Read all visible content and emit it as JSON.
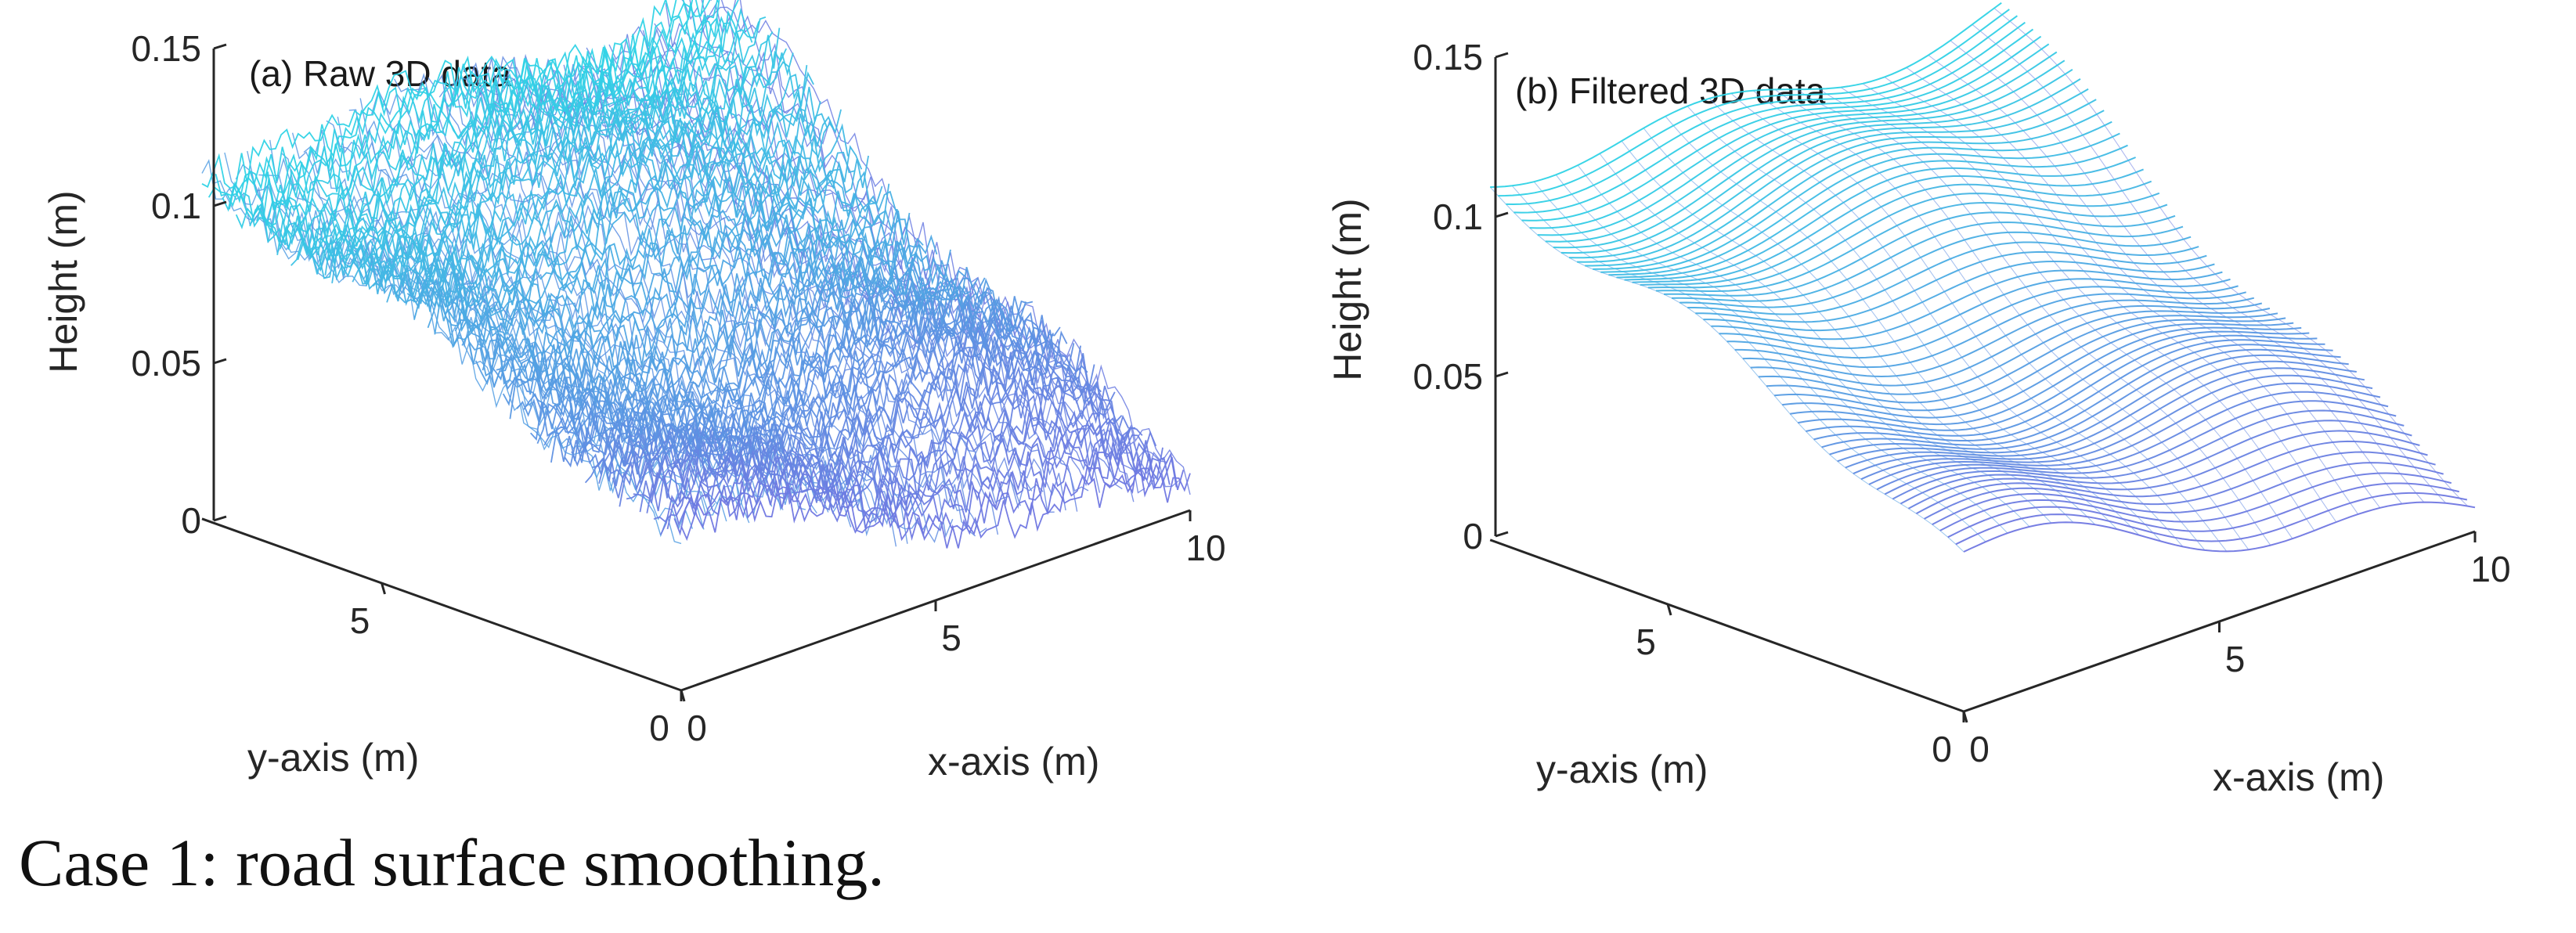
{
  "caption": "Case 1: road surface smoothing.",
  "colors": {
    "high": "#2fd3e6",
    "low": "#8060e0",
    "axis": "#262626"
  },
  "chart_data": [
    {
      "type": "surface",
      "title": "(a) Raw 3D data",
      "xlabel": "x-axis (m)",
      "ylabel": "y-axis (m)",
      "zlabel": "Height (m)",
      "xlim": [
        0,
        10
      ],
      "ylim": [
        0,
        8
      ],
      "zlim": [
        0,
        0.15
      ],
      "xticks": [
        {
          "value": 0,
          "label": "0"
        },
        {
          "value": 5,
          "label": "5"
        },
        {
          "value": 10,
          "label": "10"
        }
      ],
      "yticks": [
        {
          "value": 0,
          "label": "0"
        },
        {
          "value": 5,
          "label": "5"
        }
      ],
      "zticks": [
        {
          "value": 0,
          "label": "0"
        },
        {
          "value": 0.05,
          "label": "0.05"
        },
        {
          "value": 0.1,
          "label": "0.1"
        },
        {
          "value": 0.15,
          "label": "0.15"
        }
      ],
      "surface": {
        "min_height": 0.0,
        "max_height": 0.14,
        "noise": "high"
      }
    },
    {
      "type": "surface",
      "title": "(b) Filtered 3D data",
      "xlabel": "x-axis (m)",
      "ylabel": "y-axis (m)",
      "zlabel": "Height (m)",
      "xlim": [
        0,
        10
      ],
      "ylim": [
        0,
        8
      ],
      "zlim": [
        0,
        0.15
      ],
      "xticks": [
        {
          "value": 0,
          "label": "0"
        },
        {
          "value": 5,
          "label": "5"
        },
        {
          "value": 10,
          "label": "10"
        }
      ],
      "yticks": [
        {
          "value": 0,
          "label": "0"
        },
        {
          "value": 5,
          "label": "5"
        }
      ],
      "zticks": [
        {
          "value": 0,
          "label": "0"
        },
        {
          "value": 0.05,
          "label": "0.05"
        },
        {
          "value": 0.1,
          "label": "0.1"
        },
        {
          "value": 0.15,
          "label": "0.15"
        }
      ],
      "surface": {
        "min_height": 0.0,
        "max_height": 0.14,
        "noise": "smoothed"
      }
    }
  ]
}
